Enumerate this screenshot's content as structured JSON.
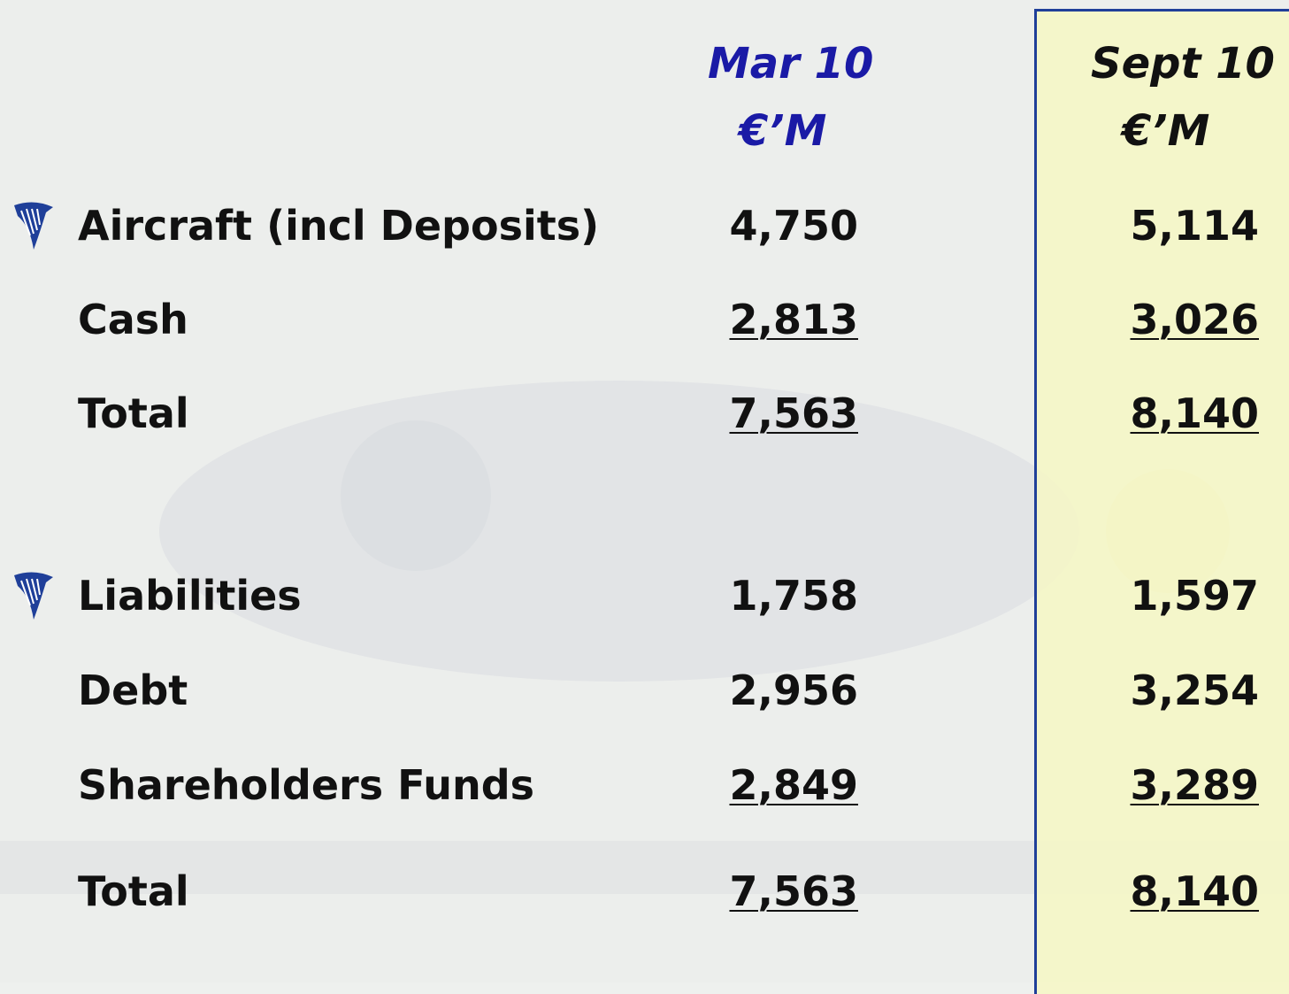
{
  "table": {
    "columns": [
      {
        "period": "Mar 10",
        "unit": "€’M"
      },
      {
        "period": "Sept 10",
        "unit": "€’M"
      }
    ],
    "rows": [
      {
        "label": "Aircraft (incl Deposits)",
        "values": [
          "4,750",
          "5,114"
        ]
      },
      {
        "label": "Cash",
        "values": [
          "2,813",
          "3,026"
        ]
      },
      {
        "label": "Total",
        "values": [
          "7,563",
          "8,140"
        ]
      },
      {
        "label": "Liabilities",
        "values": [
          "1,758",
          "1,597"
        ]
      },
      {
        "label": "Debt",
        "values": [
          "2,956",
          "3,254"
        ]
      },
      {
        "label": "Shareholders Funds",
        "values": [
          "2,849",
          "3,289"
        ]
      },
      {
        "label": "Total",
        "values": [
          "7,563",
          "8,140"
        ]
      }
    ]
  }
}
